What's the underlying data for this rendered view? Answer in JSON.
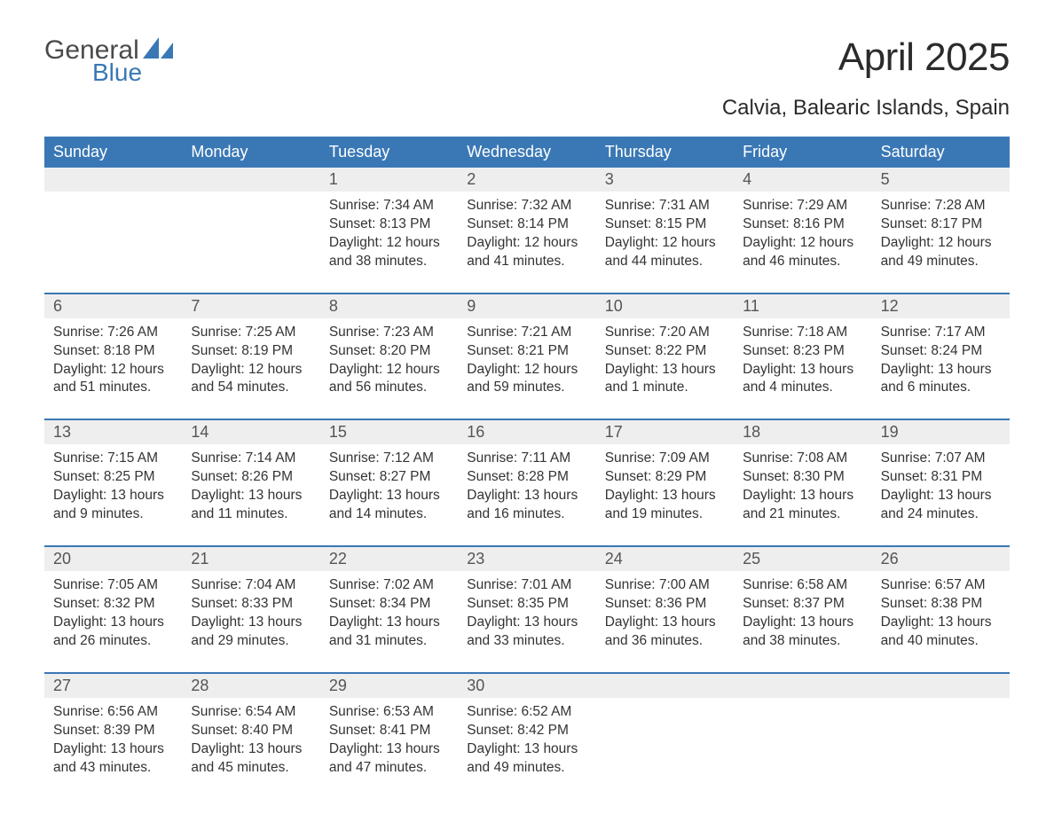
{
  "brand": {
    "word1": "General",
    "word2": "Blue"
  },
  "title": {
    "month": "April 2025",
    "location": "Calvia, Balearic Islands, Spain"
  },
  "colors": {
    "header_bg": "#3a78b5",
    "header_text": "#ffffff",
    "daynum_bg": "#eeeeee",
    "row_divider": "#3a78b5",
    "body_text": "#333333",
    "title_text": "#2b2b2b"
  },
  "typography": {
    "title_fontsize": 44,
    "location_fontsize": 24,
    "weekday_fontsize": 18,
    "daynum_fontsize": 18,
    "body_fontsize": 15.5,
    "font_family": "Arial"
  },
  "layout": {
    "columns": 7,
    "rows": 5,
    "cell_min_height": 98
  },
  "weekdays": [
    "Sunday",
    "Monday",
    "Tuesday",
    "Wednesday",
    "Thursday",
    "Friday",
    "Saturday"
  ],
  "weeks": [
    [
      {
        "day": "",
        "sunrise": "",
        "sunset": "",
        "daylight": ""
      },
      {
        "day": "",
        "sunrise": "",
        "sunset": "",
        "daylight": ""
      },
      {
        "day": "1",
        "sunrise": "Sunrise: 7:34 AM",
        "sunset": "Sunset: 8:13 PM",
        "daylight": "Daylight: 12 hours and 38 minutes."
      },
      {
        "day": "2",
        "sunrise": "Sunrise: 7:32 AM",
        "sunset": "Sunset: 8:14 PM",
        "daylight": "Daylight: 12 hours and 41 minutes."
      },
      {
        "day": "3",
        "sunrise": "Sunrise: 7:31 AM",
        "sunset": "Sunset: 8:15 PM",
        "daylight": "Daylight: 12 hours and 44 minutes."
      },
      {
        "day": "4",
        "sunrise": "Sunrise: 7:29 AM",
        "sunset": "Sunset: 8:16 PM",
        "daylight": "Daylight: 12 hours and 46 minutes."
      },
      {
        "day": "5",
        "sunrise": "Sunrise: 7:28 AM",
        "sunset": "Sunset: 8:17 PM",
        "daylight": "Daylight: 12 hours and 49 minutes."
      }
    ],
    [
      {
        "day": "6",
        "sunrise": "Sunrise: 7:26 AM",
        "sunset": "Sunset: 8:18 PM",
        "daylight": "Daylight: 12 hours and 51 minutes."
      },
      {
        "day": "7",
        "sunrise": "Sunrise: 7:25 AM",
        "sunset": "Sunset: 8:19 PM",
        "daylight": "Daylight: 12 hours and 54 minutes."
      },
      {
        "day": "8",
        "sunrise": "Sunrise: 7:23 AM",
        "sunset": "Sunset: 8:20 PM",
        "daylight": "Daylight: 12 hours and 56 minutes."
      },
      {
        "day": "9",
        "sunrise": "Sunrise: 7:21 AM",
        "sunset": "Sunset: 8:21 PM",
        "daylight": "Daylight: 12 hours and 59 minutes."
      },
      {
        "day": "10",
        "sunrise": "Sunrise: 7:20 AM",
        "sunset": "Sunset: 8:22 PM",
        "daylight": "Daylight: 13 hours and 1 minute."
      },
      {
        "day": "11",
        "sunrise": "Sunrise: 7:18 AM",
        "sunset": "Sunset: 8:23 PM",
        "daylight": "Daylight: 13 hours and 4 minutes."
      },
      {
        "day": "12",
        "sunrise": "Sunrise: 7:17 AM",
        "sunset": "Sunset: 8:24 PM",
        "daylight": "Daylight: 13 hours and 6 minutes."
      }
    ],
    [
      {
        "day": "13",
        "sunrise": "Sunrise: 7:15 AM",
        "sunset": "Sunset: 8:25 PM",
        "daylight": "Daylight: 13 hours and 9 minutes."
      },
      {
        "day": "14",
        "sunrise": "Sunrise: 7:14 AM",
        "sunset": "Sunset: 8:26 PM",
        "daylight": "Daylight: 13 hours and 11 minutes."
      },
      {
        "day": "15",
        "sunrise": "Sunrise: 7:12 AM",
        "sunset": "Sunset: 8:27 PM",
        "daylight": "Daylight: 13 hours and 14 minutes."
      },
      {
        "day": "16",
        "sunrise": "Sunrise: 7:11 AM",
        "sunset": "Sunset: 8:28 PM",
        "daylight": "Daylight: 13 hours and 16 minutes."
      },
      {
        "day": "17",
        "sunrise": "Sunrise: 7:09 AM",
        "sunset": "Sunset: 8:29 PM",
        "daylight": "Daylight: 13 hours and 19 minutes."
      },
      {
        "day": "18",
        "sunrise": "Sunrise: 7:08 AM",
        "sunset": "Sunset: 8:30 PM",
        "daylight": "Daylight: 13 hours and 21 minutes."
      },
      {
        "day": "19",
        "sunrise": "Sunrise: 7:07 AM",
        "sunset": "Sunset: 8:31 PM",
        "daylight": "Daylight: 13 hours and 24 minutes."
      }
    ],
    [
      {
        "day": "20",
        "sunrise": "Sunrise: 7:05 AM",
        "sunset": "Sunset: 8:32 PM",
        "daylight": "Daylight: 13 hours and 26 minutes."
      },
      {
        "day": "21",
        "sunrise": "Sunrise: 7:04 AM",
        "sunset": "Sunset: 8:33 PM",
        "daylight": "Daylight: 13 hours and 29 minutes."
      },
      {
        "day": "22",
        "sunrise": "Sunrise: 7:02 AM",
        "sunset": "Sunset: 8:34 PM",
        "daylight": "Daylight: 13 hours and 31 minutes."
      },
      {
        "day": "23",
        "sunrise": "Sunrise: 7:01 AM",
        "sunset": "Sunset: 8:35 PM",
        "daylight": "Daylight: 13 hours and 33 minutes."
      },
      {
        "day": "24",
        "sunrise": "Sunrise: 7:00 AM",
        "sunset": "Sunset: 8:36 PM",
        "daylight": "Daylight: 13 hours and 36 minutes."
      },
      {
        "day": "25",
        "sunrise": "Sunrise: 6:58 AM",
        "sunset": "Sunset: 8:37 PM",
        "daylight": "Daylight: 13 hours and 38 minutes."
      },
      {
        "day": "26",
        "sunrise": "Sunrise: 6:57 AM",
        "sunset": "Sunset: 8:38 PM",
        "daylight": "Daylight: 13 hours and 40 minutes."
      }
    ],
    [
      {
        "day": "27",
        "sunrise": "Sunrise: 6:56 AM",
        "sunset": "Sunset: 8:39 PM",
        "daylight": "Daylight: 13 hours and 43 minutes."
      },
      {
        "day": "28",
        "sunrise": "Sunrise: 6:54 AM",
        "sunset": "Sunset: 8:40 PM",
        "daylight": "Daylight: 13 hours and 45 minutes."
      },
      {
        "day": "29",
        "sunrise": "Sunrise: 6:53 AM",
        "sunset": "Sunset: 8:41 PM",
        "daylight": "Daylight: 13 hours and 47 minutes."
      },
      {
        "day": "30",
        "sunrise": "Sunrise: 6:52 AM",
        "sunset": "Sunset: 8:42 PM",
        "daylight": "Daylight: 13 hours and 49 minutes."
      },
      {
        "day": "",
        "sunrise": "",
        "sunset": "",
        "daylight": ""
      },
      {
        "day": "",
        "sunrise": "",
        "sunset": "",
        "daylight": ""
      },
      {
        "day": "",
        "sunrise": "",
        "sunset": "",
        "daylight": ""
      }
    ]
  ]
}
